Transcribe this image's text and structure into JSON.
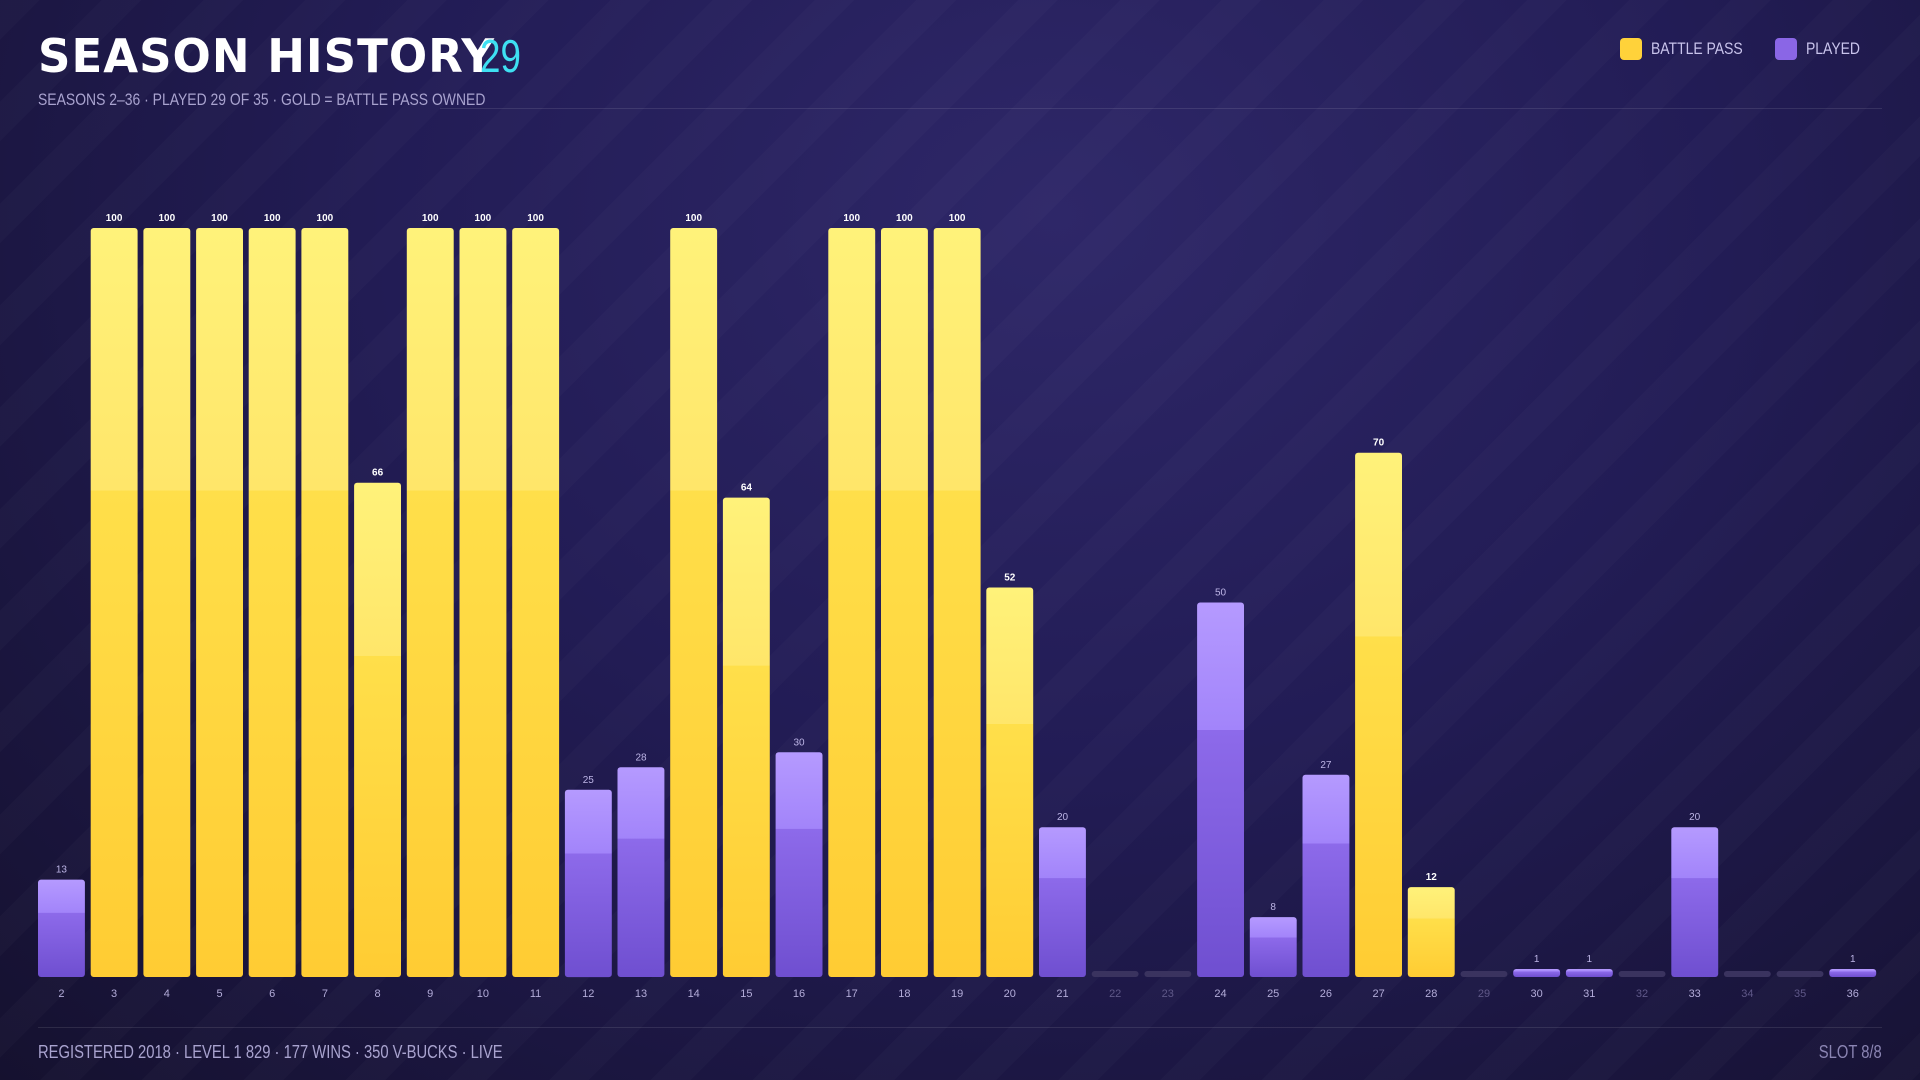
{
  "header": {
    "title": "SEASON HISTORY",
    "count": "29",
    "subtitle": "SEASONS 2–36  ·  PLAYED 29 OF 35  ·  GOLD = BATTLE PASS OWNED"
  },
  "legend": {
    "battle_pass_label": "BATTLE PASS",
    "played_label": "PLAYED"
  },
  "footer": {
    "stats": "REGISTERED 2018  ·  LEVEL 1 829  ·  177 WINS  ·  350 V-BUCKS  ·  LIVE",
    "slot": "SLOT 8/8"
  },
  "colors": {
    "battle_pass": "#ffd23a",
    "played": "#8a66e6",
    "not_played": "#3a335f",
    "accent": "#3ee0f2"
  },
  "chart_data": {
    "type": "bar",
    "xlabel": "",
    "ylabel": "",
    "ylim": [
      0,
      100
    ],
    "grid": false,
    "legend_position": "top-right",
    "categories": [
      "2",
      "3",
      "4",
      "5",
      "6",
      "7",
      "8",
      "9",
      "10",
      "11",
      "12",
      "13",
      "14",
      "15",
      "16",
      "17",
      "18",
      "19",
      "20",
      "21",
      "22",
      "23",
      "24",
      "25",
      "26",
      "27",
      "28",
      "29",
      "30",
      "31",
      "32",
      "33",
      "34",
      "35",
      "36"
    ],
    "values": [
      13,
      100,
      100,
      100,
      100,
      100,
      66,
      100,
      100,
      100,
      25,
      28,
      100,
      64,
      30,
      100,
      100,
      100,
      52,
      20,
      0,
      0,
      50,
      8,
      27,
      70,
      12,
      0,
      1,
      1,
      0,
      20,
      0,
      0,
      1
    ],
    "status": [
      "played",
      "bp",
      "bp",
      "bp",
      "bp",
      "bp",
      "bp",
      "bp",
      "bp",
      "bp",
      "played",
      "played",
      "bp",
      "bp",
      "played",
      "bp",
      "bp",
      "bp",
      "bp",
      "played",
      "none",
      "none",
      "played",
      "played",
      "played",
      "bp",
      "bp",
      "none",
      "played",
      "played",
      "none",
      "played",
      "none",
      "none",
      "played"
    ],
    "status_legend": {
      "bp": "BATTLE PASS",
      "played": "PLAYED"
    }
  }
}
